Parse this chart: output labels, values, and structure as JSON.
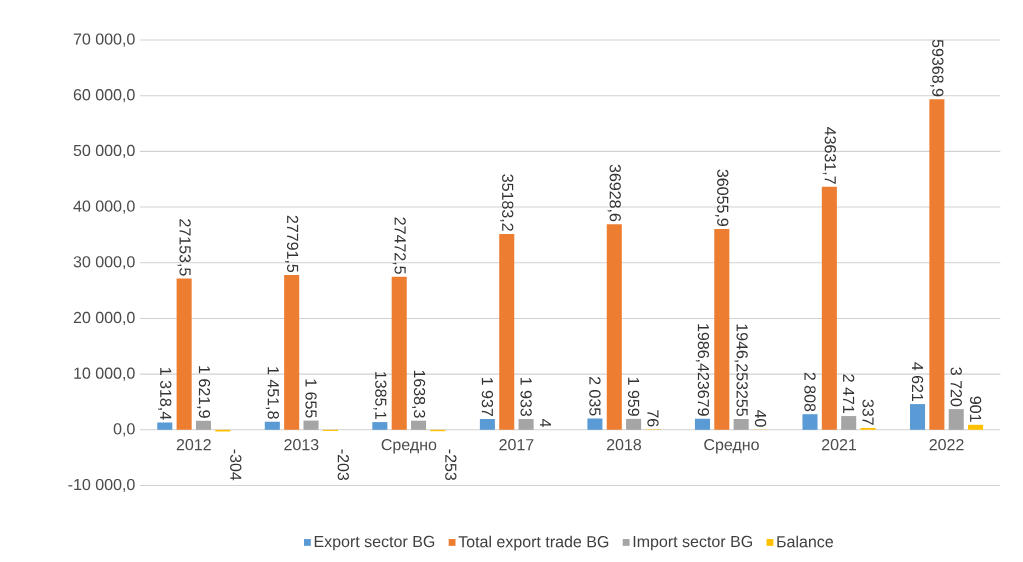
{
  "chart_data": {
    "type": "bar",
    "categories": [
      "2012",
      "2013",
      "Средно",
      "2017",
      "2018",
      "Средно",
      "2021",
      "2022"
    ],
    "series": [
      {
        "name": "Export sector BG",
        "color": "#5b9bd5",
        "values": [
          1318.4,
          1451.8,
          1385.1,
          1937,
          2035,
          1986.423679,
          2808,
          4621
        ],
        "value_labels": [
          "1 318,4",
          "1 451,8",
          "1385,1",
          "1 937",
          "2 035",
          "1986,423679",
          "2 808",
          "4 621"
        ]
      },
      {
        "name": "Total export trade BG",
        "color": "#ed7d31",
        "values": [
          27153.5,
          27791.5,
          27472.5,
          35183.2,
          36928.6,
          36055.9,
          43631.7,
          59368.9
        ],
        "value_labels": [
          "27153,5",
          "27791,5",
          "27472,5",
          "35183,2",
          "36928,6",
          "36055,9",
          "43631,7",
          "59368,9"
        ]
      },
      {
        "name": "Import sector BG",
        "color": "#a5a5a5",
        "values": [
          1621.9,
          1655,
          1638.3,
          1933,
          1959,
          1946.253255,
          2471,
          3720
        ],
        "value_labels": [
          "1 621,9",
          "1 655",
          "1638,3",
          "1 933",
          "1 959",
          "1946,253255",
          "2 471",
          "3 720"
        ]
      },
      {
        "name": "Баlance",
        "color": "#ffc000",
        "values": [
          -304,
          -203,
          -253,
          4,
          76,
          40,
          337,
          901
        ],
        "value_labels": [
          "-304",
          "-203",
          "-253",
          "4",
          "76",
          "40",
          "337",
          "901"
        ]
      }
    ],
    "ylim": [
      -10000,
      70000
    ],
    "yticks": [
      {
        "value": -10000,
        "label": "-10 000,0"
      },
      {
        "value": 0,
        "label": "0,0"
      },
      {
        "value": 10000,
        "label": "10 000,0"
      },
      {
        "value": 20000,
        "label": "20 000,0"
      },
      {
        "value": 30000,
        "label": "30 000,0"
      },
      {
        "value": 40000,
        "label": "40 000,0"
      },
      {
        "value": 50000,
        "label": "50 000,0"
      },
      {
        "value": 60000,
        "label": "60 000,0"
      },
      {
        "value": 70000,
        "label": "70 000,0"
      }
    ],
    "grid": "y",
    "legend": "bottom"
  }
}
